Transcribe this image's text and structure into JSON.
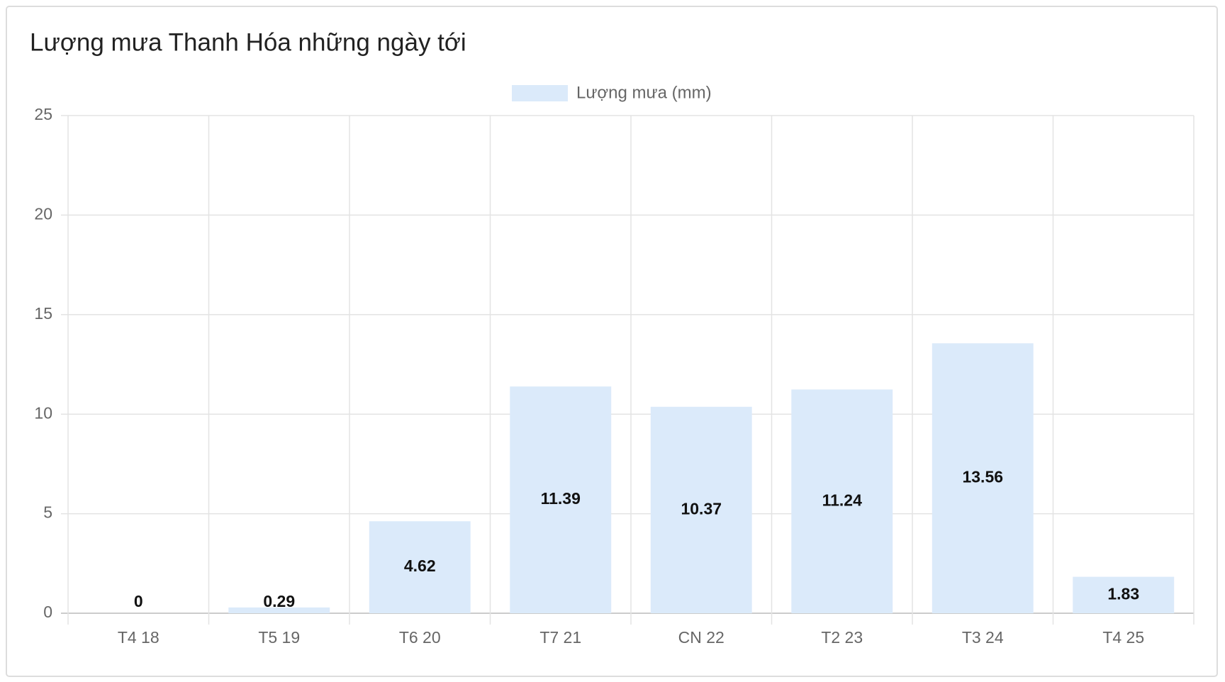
{
  "chart_data": {
    "type": "bar",
    "title": "Lượng mưa Thanh Hóa những ngày tới",
    "categories": [
      "T4 18",
      "T5 19",
      "T6 20",
      "T7 21",
      "CN 22",
      "T2 23",
      "T3 24",
      "T4 25"
    ],
    "series": [
      {
        "name": "Lượng mưa (mm)",
        "color": "#dbeafa",
        "values": [
          0,
          0.29,
          4.62,
          11.39,
          10.37,
          11.24,
          13.56,
          1.83
        ]
      }
    ],
    "ylim": [
      0,
      25
    ],
    "yticks": [
      0,
      5,
      10,
      15,
      20,
      25
    ],
    "grid": true,
    "legend": "top"
  }
}
